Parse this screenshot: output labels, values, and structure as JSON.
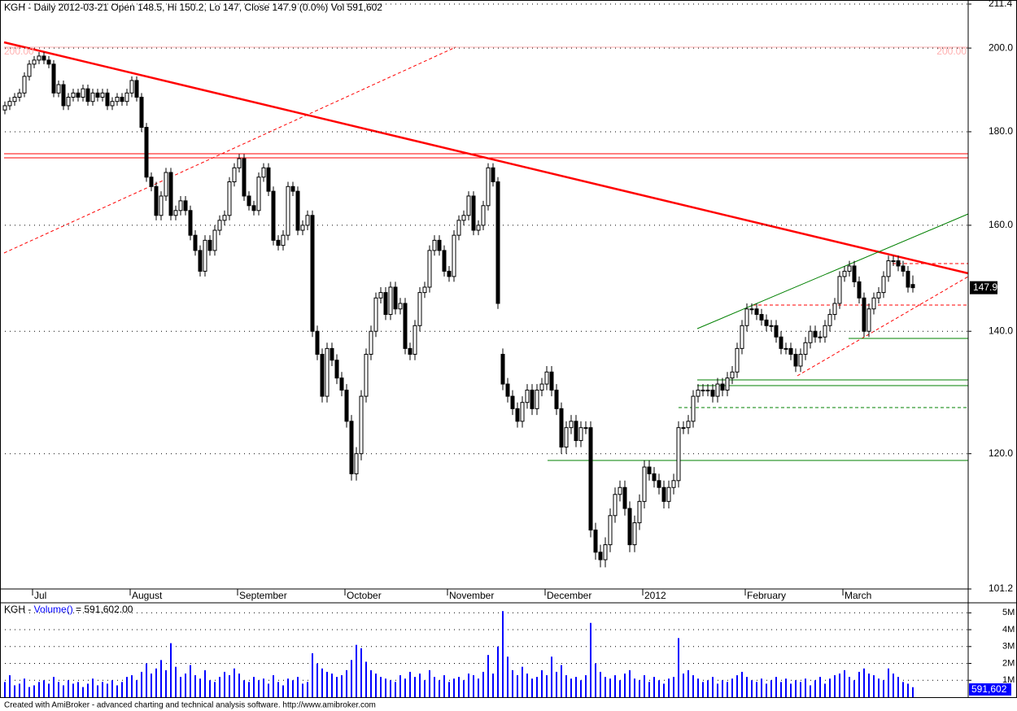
{
  "chart_data": [
    {
      "type": "candlestick",
      "title": "KGH - Daily 2012-03-21 Open 148.5, Hi 150.2, Lo 147, Close 147.9 (0.0%) Vol 591,602",
      "level_label": "200.00",
      "log_scale": true,
      "grid": true,
      "up_color": "#ffffff",
      "down_color": "#000000",
      "ylim": [
        101.2,
        211.4
      ],
      "yticks": [
        101.2,
        {
          "value": 120,
          "label": "120.0"
        },
        {
          "value": 140,
          "label": "140.0"
        },
        {
          "value": 160,
          "label": "160.0"
        },
        {
          "value": 180,
          "label": "180.0"
        },
        {
          "value": 200,
          "label": "200.0"
        },
        211.4
      ],
      "categories": [
        null,
        null,
        null,
        null,
        null,
        null,
        "Jul",
        null,
        null,
        null,
        null,
        null,
        null,
        null,
        null,
        null,
        null,
        null,
        null,
        null,
        null,
        null,
        null,
        null,
        null,
        null,
        "August",
        null,
        null,
        null,
        null,
        null,
        null,
        null,
        null,
        null,
        null,
        null,
        null,
        null,
        null,
        null,
        null,
        null,
        null,
        null,
        null,
        null,
        "September",
        null,
        null,
        null,
        null,
        null,
        null,
        null,
        null,
        null,
        null,
        null,
        null,
        null,
        null,
        null,
        null,
        null,
        null,
        null,
        null,
        null,
        "October",
        null,
        null,
        null,
        null,
        null,
        null,
        null,
        null,
        null,
        null,
        null,
        null,
        null,
        null,
        null,
        null,
        null,
        null,
        null,
        null,
        "November",
        null,
        null,
        null,
        null,
        null,
        null,
        null,
        null,
        null,
        null,
        null,
        null,
        null,
        null,
        null,
        null,
        null,
        null,
        null,
        "December",
        null,
        null,
        null,
        null,
        null,
        null,
        null,
        null,
        null,
        null,
        null,
        null,
        null,
        null,
        null,
        null,
        null,
        null,
        null,
        "2012",
        null,
        null,
        null,
        null,
        null,
        null,
        null,
        null,
        null,
        null,
        null,
        null,
        null,
        null,
        null,
        null,
        null,
        null,
        null,
        null,
        "February",
        null,
        null,
        null,
        null,
        null,
        null,
        null,
        null,
        null,
        null,
        null,
        null,
        null,
        null,
        null,
        null,
        null,
        null,
        null,
        "March",
        null,
        null,
        null,
        null,
        null,
        null,
        null,
        null,
        null,
        null,
        null,
        null,
        null,
        null
      ],
      "open": [
        185,
        186,
        187,
        188,
        189,
        193,
        196,
        197,
        198,
        197,
        196,
        189,
        191,
        186,
        188,
        189,
        188,
        190,
        187,
        189,
        188,
        189,
        186,
        187,
        188,
        187,
        189,
        192,
        188,
        181,
        170,
        168,
        162,
        166,
        171,
        162,
        163,
        165,
        163,
        158,
        155,
        151,
        157,
        155,
        159,
        161,
        162,
        169,
        172,
        174,
        166,
        164,
        163,
        170,
        172,
        167,
        157,
        156,
        158,
        168,
        167,
        159,
        160,
        162,
        140,
        136,
        129,
        137,
        135,
        132,
        130,
        125,
        117,
        120,
        129,
        136,
        140,
        146,
        147,
        143,
        148,
        144,
        145,
        137,
        136,
        141,
        147,
        148,
        155,
        157,
        155,
        151,
        150,
        158,
        161,
        162,
        166,
        159,
        160,
        164,
        172,
        169,
        136,
        131,
        129,
        127,
        125,
        128,
        130,
        127,
        130,
        131,
        133,
        130,
        127,
        121,
        124,
        125,
        122,
        124,
        124,
        109,
        106,
        105,
        107,
        111,
        114,
        115,
        112,
        107,
        110,
        113,
        118,
        117,
        116,
        115,
        113,
        115,
        116,
        124,
        124,
        125,
        129,
        130,
        130,
        130,
        129,
        131,
        130,
        132,
        133,
        137,
        141,
        144,
        144,
        143,
        142,
        141,
        141,
        139,
        137,
        137,
        136,
        134,
        136,
        138,
        140,
        139,
        139,
        141,
        143,
        145,
        150,
        151,
        152,
        149,
        146,
        140,
        144,
        146,
        147,
        150,
        153,
        153,
        152,
        151,
        148.5
      ],
      "high": [
        187,
        188,
        189,
        190,
        194,
        197,
        198,
        199,
        199,
        198,
        197,
        192,
        192,
        189,
        190,
        190,
        191,
        191,
        190,
        190,
        190,
        190,
        188,
        189,
        189,
        190,
        193,
        193,
        189,
        182,
        171,
        169,
        167,
        172,
        172,
        164,
        166,
        166,
        164,
        159,
        156,
        158,
        158,
        160,
        162,
        163,
        170,
        173,
        175,
        175,
        167,
        165,
        171,
        173,
        173,
        168,
        158,
        159,
        169,
        169,
        168,
        161,
        163,
        163,
        141,
        137,
        138,
        138,
        136,
        133,
        131,
        126,
        121,
        130,
        137,
        141,
        147,
        148,
        148,
        149,
        149,
        146,
        146,
        138,
        142,
        148,
        149,
        156,
        158,
        158,
        156,
        152,
        159,
        162,
        163,
        167,
        167,
        161,
        165,
        173,
        173,
        170,
        137,
        132,
        130,
        128,
        129,
        131,
        131,
        131,
        132,
        134,
        134,
        131,
        128,
        125,
        126,
        126,
        125,
        125,
        125,
        110,
        107,
        108,
        112,
        115,
        116,
        116,
        113,
        111,
        114,
        119,
        119,
        118,
        117,
        116,
        116,
        117,
        125,
        125,
        126,
        130,
        131,
        131,
        131,
        131,
        132,
        132,
        133,
        134,
        138,
        142,
        145,
        145,
        145,
        144,
        143,
        142,
        142,
        140,
        138,
        138,
        137,
        137,
        139,
        141,
        141,
        140,
        142,
        144,
        146,
        151,
        152,
        153,
        153,
        150,
        147,
        145,
        147,
        148,
        151,
        154,
        154,
        154,
        153,
        152,
        150.2
      ],
      "low": [
        184,
        185,
        186,
        187,
        188,
        192,
        195,
        196,
        196,
        195,
        188,
        188,
        185,
        185,
        187,
        187,
        187,
        186,
        186,
        187,
        187,
        185,
        185,
        186,
        186,
        186,
        188,
        187,
        180,
        169,
        167,
        161,
        161,
        165,
        161,
        161,
        162,
        162,
        157,
        154,
        150,
        150,
        154,
        154,
        158,
        160,
        161,
        168,
        171,
        165,
        163,
        162,
        162,
        169,
        166,
        156,
        155,
        155,
        157,
        166,
        158,
        158,
        159,
        139,
        135,
        128,
        128,
        134,
        131,
        129,
        124,
        116,
        116,
        119,
        128,
        135,
        139,
        145,
        142,
        142,
        143,
        143,
        136,
        135,
        135,
        140,
        146,
        147,
        154,
        154,
        150,
        149,
        149,
        157,
        160,
        161,
        158,
        158,
        159,
        163,
        168,
        144,
        130,
        128,
        126,
        124,
        124,
        127,
        126,
        126,
        129,
        130,
        129,
        126,
        120,
        120,
        123,
        121,
        121,
        123,
        108,
        105,
        104,
        104,
        106,
        110,
        113,
        111,
        106,
        106,
        109,
        112,
        116,
        115,
        114,
        112,
        112,
        114,
        115,
        123,
        123,
        124,
        128,
        129,
        129,
        128,
        128,
        129,
        129,
        131,
        132,
        136,
        140,
        143,
        142,
        141,
        140,
        140,
        138,
        136,
        136,
        135,
        133,
        133,
        135,
        137,
        138,
        138,
        138,
        140,
        142,
        144,
        149,
        150,
        148,
        145,
        139,
        139,
        143,
        145,
        146,
        149,
        152,
        151,
        150,
        147,
        147
      ],
      "close": [
        186,
        187,
        188,
        189,
        193,
        196,
        197,
        198,
        197,
        196,
        189,
        191,
        186,
        188,
        189,
        188,
        190,
        187,
        189,
        188,
        189,
        186,
        187,
        188,
        187,
        189,
        192,
        188,
        181,
        170,
        168,
        162,
        166,
        171,
        162,
        163,
        165,
        163,
        158,
        155,
        151,
        157,
        155,
        159,
        161,
        162,
        169,
        172,
        174,
        166,
        164,
        163,
        170,
        172,
        167,
        157,
        156,
        158,
        168,
        167,
        159,
        160,
        162,
        140,
        136,
        129,
        137,
        135,
        132,
        130,
        125,
        117,
        120,
        129,
        136,
        140,
        146,
        147,
        143,
        148,
        144,
        145,
        137,
        136,
        141,
        147,
        148,
        155,
        157,
        155,
        151,
        150,
        158,
        161,
        162,
        166,
        159,
        160,
        164,
        172,
        169,
        145,
        131,
        129,
        127,
        125,
        128,
        130,
        127,
        130,
        131,
        133,
        130,
        127,
        121,
        124,
        125,
        122,
        124,
        124,
        109,
        106,
        105,
        107,
        111,
        114,
        115,
        112,
        107,
        110,
        113,
        118,
        117,
        116,
        115,
        113,
        115,
        116,
        124,
        124,
        125,
        129,
        130,
        130,
        130,
        129,
        131,
        130,
        132,
        133,
        137,
        141,
        144,
        144,
        143,
        142,
        141,
        141,
        139,
        137,
        137,
        136,
        134,
        136,
        138,
        140,
        139,
        139,
        141,
        143,
        145,
        150,
        151,
        152,
        149,
        146,
        140,
        144,
        146,
        147,
        150,
        153,
        153,
        152,
        151,
        148,
        147.9
      ]
    },
    {
      "type": "volume",
      "title_parts": [
        "KGH - ",
        "Volume()",
        " = 591,602.00"
      ],
      "color": "#0000ff",
      "grid": true,
      "last_value_label": "591,602",
      "ylim": [
        0,
        5400000
      ],
      "yticks": [
        {
          "value": 1000000,
          "label": "1M"
        },
        {
          "value": 2000000,
          "label": "2M"
        },
        {
          "value": 3000000,
          "label": "3M"
        },
        {
          "value": 4000000,
          "label": "4M"
        },
        {
          "value": 5000000,
          "label": "5M"
        }
      ],
      "values": [
        900000,
        1300000,
        700000,
        800000,
        1100000,
        600000,
        700000,
        900000,
        1000000,
        800000,
        1200000,
        900000,
        700000,
        1000000,
        800000,
        900000,
        600000,
        800000,
        1100000,
        700000,
        900000,
        800000,
        1000000,
        700000,
        900000,
        1200000,
        1300000,
        1000000,
        1500000,
        2000000,
        1400000,
        1700000,
        2200000,
        1600000,
        3200000,
        1800000,
        1200000,
        1400000,
        1900000,
        1300000,
        1100000,
        1600000,
        1000000,
        900000,
        1200000,
        1500000,
        1300000,
        1700000,
        1400000,
        1000000,
        900000,
        1200000,
        1000000,
        1100000,
        800000,
        1300000,
        900000,
        700000,
        1100000,
        1000000,
        1200000,
        800000,
        900000,
        2600000,
        2000000,
        1700000,
        1500000,
        1400000,
        1200000,
        1300000,
        1600000,
        2200000,
        3100000,
        2900000,
        2100000,
        1600000,
        1400000,
        1200000,
        1100000,
        1000000,
        900000,
        1300000,
        1100000,
        1500000,
        1200000,
        1400000,
        1000000,
        1600000,
        1200000,
        1000000,
        1300000,
        900000,
        1100000,
        1200000,
        1000000,
        1400000,
        1300000,
        1100000,
        1500000,
        2500000,
        1400000,
        3000000,
        5100000,
        2400000,
        1600000,
        1300000,
        1800000,
        1400000,
        1100000,
        1200000,
        1600000,
        1300000,
        2400000,
        1500000,
        1900000,
        1300000,
        1100000,
        1200000,
        1000000,
        1300000,
        4400000,
        2000000,
        1500000,
        1200000,
        1100000,
        1300000,
        1000000,
        1400000,
        1600000,
        1100000,
        1000000,
        1300000,
        900000,
        1200000,
        1000000,
        800000,
        1100000,
        1200000,
        3500000,
        1400000,
        1600000,
        1300000,
        1100000,
        900000,
        1000000,
        1200000,
        800000,
        1000000,
        900000,
        1100000,
        1300000,
        1500000,
        1200000,
        1000000,
        900000,
        1100000,
        800000,
        1000000,
        1200000,
        900000,
        1100000,
        800000,
        1000000,
        900000,
        1100000,
        700000,
        1000000,
        1200000,
        800000,
        1100000,
        1300000,
        1400000,
        1600000,
        1200000,
        1000000,
        1500000,
        1700000,
        1400000,
        1300000,
        1100000,
        1000000,
        1700000,
        1400000,
        1200000,
        900000,
        800000,
        591602
      ]
    }
  ],
  "footer": "Created with AmiBroker - advanced charting and technical analysis software. http://www.amibroker.com"
}
